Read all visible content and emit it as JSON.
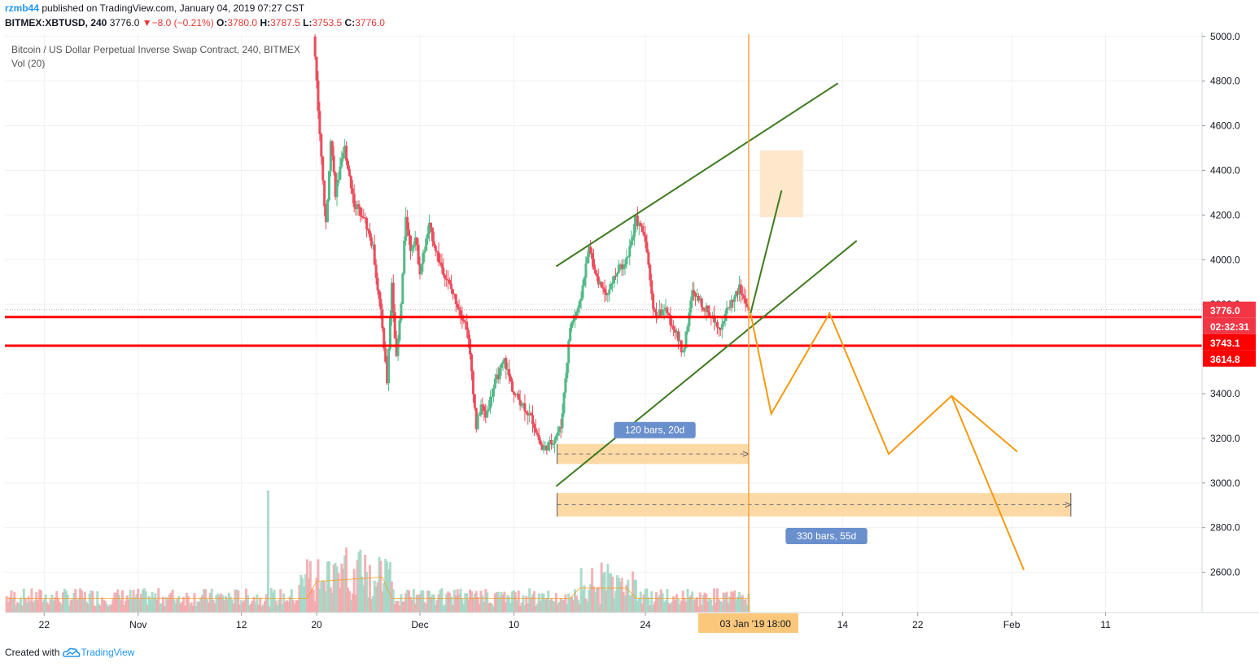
{
  "header": {
    "user": "rzmb44",
    "published": "published on TradingView.com, January 04, 2019 07:27 CST",
    "symbol": "BITMEX:XBTUSD, 240",
    "last": "3776.0",
    "change": "−8.0 (−0.21%)",
    "o_label": "O:",
    "o": "3780.0",
    "h_label": "H:",
    "h": "3787.5",
    "l_label": "L:",
    "l": "3753.5",
    "c_label": "C:",
    "c": "3776.0"
  },
  "legend": {
    "title": "Bitcoin / US Dollar Perpetual Inverse Swap Contract, 240, BITMEX",
    "volume": "Vol (20)"
  },
  "footer": {
    "created": "Created with",
    "brand": "TradingView"
  },
  "chart_data": {
    "type": "candlestick",
    "y_axis": {
      "min": 2420,
      "max": 5010,
      "ticks": [
        5000,
        4800,
        4600,
        4400,
        4200,
        4000,
        3800,
        3600,
        3400,
        3200,
        3000,
        2800,
        2600
      ]
    },
    "x_axis": {
      "ticks": [
        {
          "label": "22",
          "day": -41
        },
        {
          "label": "Nov",
          "day": -31
        },
        {
          "label": "12",
          "day": -20
        },
        {
          "label": "20",
          "day": -12
        },
        {
          "label": "Dec",
          "day": -1
        },
        {
          "label": "10",
          "day": 9
        },
        {
          "label": "24",
          "day": 23
        },
        {
          "label": "14",
          "day": 44
        },
        {
          "label": "22",
          "day": 52
        },
        {
          "label": "Feb",
          "day": 62
        },
        {
          "label": "11",
          "day": 72
        }
      ],
      "crosshair_label": "03 Jan '19",
      "crosshair_time": "18:00"
    },
    "price_labels": [
      {
        "value": 3776.0,
        "text": "3776.0",
        "color": "#f23645"
      },
      {
        "value": 3721,
        "text": "02:32:31",
        "color": "#f23645"
      },
      {
        "value": 3743.1,
        "text": "3743.1",
        "color": "#ff0000"
      },
      {
        "value": 3614.8,
        "text": "3614.8",
        "color": "#ff0000"
      }
    ],
    "price_path": [
      [
        -12.3,
        5000
      ],
      [
        -12,
        4800
      ],
      [
        -11.5,
        4450
      ],
      [
        -11,
        4150
      ],
      [
        -10.5,
        4550
      ],
      [
        -10,
        4300
      ],
      [
        -9,
        4500
      ],
      [
        -8,
        4250
      ],
      [
        -7,
        4200
      ],
      [
        -6,
        4050
      ],
      [
        -5,
        3700
      ],
      [
        -4.5,
        3450
      ],
      [
        -4,
        3900
      ],
      [
        -3.5,
        3550
      ],
      [
        -3,
        3800
      ],
      [
        -2.5,
        4200
      ],
      [
        -2,
        4050
      ],
      [
        -1.5,
        4100
      ],
      [
        -1,
        3950
      ],
      [
        0,
        4150
      ],
      [
        1,
        4000
      ],
      [
        2,
        3900
      ],
      [
        3,
        3800
      ],
      [
        4,
        3700
      ],
      [
        4.5,
        3500
      ],
      [
        5,
        3250
      ],
      [
        5.5,
        3350
      ],
      [
        6,
        3300
      ],
      [
        7,
        3450
      ],
      [
        8,
        3550
      ],
      [
        9,
        3400
      ],
      [
        10,
        3350
      ],
      [
        11,
        3280
      ],
      [
        12,
        3150
      ],
      [
        13,
        3180
      ],
      [
        14,
        3250
      ],
      [
        15,
        3700
      ],
      [
        16,
        3800
      ],
      [
        17,
        4050
      ],
      [
        18,
        3900
      ],
      [
        19,
        3850
      ],
      [
        20,
        3950
      ],
      [
        21,
        4000
      ],
      [
        22,
        4180
      ],
      [
        23,
        4100
      ],
      [
        23.5,
        3900
      ],
      [
        24,
        3750
      ],
      [
        25,
        3780
      ],
      [
        26,
        3700
      ],
      [
        27,
        3580
      ],
      [
        28,
        3850
      ],
      [
        29,
        3800
      ],
      [
        30,
        3750
      ],
      [
        31,
        3700
      ],
      [
        32,
        3800
      ],
      [
        33,
        3870
      ],
      [
        34,
        3776
      ]
    ],
    "horizontal_lines": [
      3743.1,
      3614.8
    ],
    "channel_lines": [
      {
        "from": [
          13.5,
          3970
        ],
        "to": [
          43.5,
          4790
        ]
      },
      {
        "from": [
          13.5,
          2985
        ],
        "to": [
          45.5,
          4085
        ]
      }
    ],
    "bullish_projection": {
      "from": [
        34.2,
        3760
      ],
      "to": [
        37.5,
        4310
      ]
    },
    "target_box": {
      "day_from": 35.2,
      "day_to": 39.8,
      "price_from": 4190,
      "price_to": 4490
    },
    "bearish_projection": [
      [
        34.2,
        3760
      ],
      [
        36.4,
        3310
      ],
      [
        42.6,
        3760
      ],
      [
        48.9,
        3130
      ],
      [
        55.6,
        3390
      ],
      [
        62.6,
        3140
      ]
    ],
    "bearish_projection2": [
      [
        55.6,
        3390
      ],
      [
        63.3,
        2610
      ]
    ],
    "vertical_line_day": 34,
    "measure_boxes": [
      {
        "label": "120 bars, 20d",
        "day_from": 13.6,
        "day_to": 34,
        "price_from": 3085,
        "price_to": 3175
      },
      {
        "label": "330 bars, 55d",
        "day_from": 13.6,
        "day_to": 68.3,
        "price_from": 2850,
        "price_to": 2955
      }
    ],
    "volume_max": 6000
  }
}
